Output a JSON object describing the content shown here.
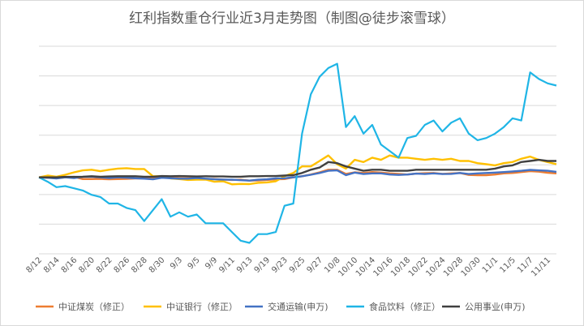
{
  "chart_data": {
    "type": "line",
    "title": "红利指数重仓行业近3月走势图（制图@徒步滚雪球）",
    "x": [
      "8/12",
      "8/13",
      "8/14",
      "8/15",
      "8/16",
      "8/19",
      "8/20",
      "8/21",
      "8/22",
      "8/23",
      "8/26",
      "8/27",
      "8/28",
      "8/29",
      "8/30",
      "9/2",
      "9/3",
      "9/4",
      "9/5",
      "9/6",
      "9/9",
      "9/10",
      "9/11",
      "9/12",
      "9/13",
      "9/18",
      "9/19",
      "9/20",
      "9/23",
      "9/24",
      "9/25",
      "9/26",
      "9/27",
      "9/30",
      "10/8",
      "10/9",
      "10/10",
      "10/11",
      "10/14",
      "10/15",
      "10/16",
      "10/17",
      "10/18",
      "10/21",
      "10/22",
      "10/23",
      "10/24",
      "10/25",
      "10/28",
      "10/29",
      "10/30",
      "10/31",
      "11/1",
      "11/4",
      "11/5",
      "11/6",
      "11/7",
      "11/8",
      "11/11",
      "11/12"
    ],
    "x_tick_labels": [
      "8/12",
      "8/14",
      "8/16",
      "8/20",
      "8/22",
      "8/26",
      "8/28",
      "8/30",
      "9/3",
      "9/5",
      "9/9",
      "9/11",
      "9/13",
      "9/19",
      "9/23",
      "9/25",
      "9/27",
      "10/8",
      "10/10",
      "10/14",
      "10/16",
      "10/18",
      "10/22",
      "10/24",
      "10/28",
      "10/30",
      "11/1",
      "11/5",
      "11/7",
      "11/11"
    ],
    "grid": true,
    "legend_position": "bottom",
    "series": [
      {
        "name": "中证煤炭（修正）",
        "color": "#ed7d31",
        "values": [
          0,
          -0.2,
          -0.3,
          0,
          0.2,
          -0.8,
          -0.8,
          -0.7,
          -0.9,
          -0.8,
          -0.7,
          -0.5,
          -0.5,
          -0.6,
          0.3,
          -0.2,
          -0.4,
          -0.4,
          -0.3,
          -0.7,
          -0.8,
          -1.0,
          -1.2,
          -1.1,
          -1.5,
          -1.4,
          -1.2,
          -0.9,
          -0.8,
          0,
          0.5,
          1.3,
          2.3,
          3.5,
          3.5,
          1.6,
          2.3,
          2.0,
          2.4,
          2.2,
          1.8,
          1.6,
          1.3,
          1.7,
          1.9,
          2.0,
          1.6,
          1.8,
          2.0,
          1.1,
          1.0,
          1.0,
          1.3,
          1.8,
          2.0,
          2.4,
          2.8,
          2.6,
          2.1,
          1.8
        ]
      },
      {
        "name": "中证银行（修正）",
        "color": "#ffc000",
        "values": [
          0,
          0.8,
          0.3,
          1.2,
          2.3,
          3.2,
          3.5,
          2.8,
          3.5,
          4.0,
          4.2,
          3.8,
          3.8,
          0.5,
          0.5,
          -0.5,
          -0.8,
          -1.2,
          -1.1,
          -1.0,
          -2.0,
          -1.8,
          -3.2,
          -3.0,
          -3.1,
          -2.5,
          -2.3,
          -1.8,
          0.5,
          2.0,
          5.0,
          5.0,
          7.5,
          10.0,
          6.0,
          4.0,
          8.0,
          7.0,
          9.0,
          8.0,
          10.0,
          9.0,
          9.0,
          8.5,
          8.0,
          8.5,
          8.0,
          8.5,
          7.5,
          7.5,
          6.5,
          6.0,
          5.5,
          6.5,
          7.0,
          8.5,
          9.5,
          8.0,
          7.0,
          6.0
        ]
      },
      {
        "name": "交通运输(申万)",
        "color": "#4472c4",
        "values": [
          0,
          -0.2,
          -0.5,
          0,
          -0.3,
          0.2,
          0.3,
          0,
          -0.3,
          0,
          -0.2,
          -0.4,
          -0.6,
          -0.9,
          -0.2,
          -0.4,
          -0.6,
          -0.6,
          -0.3,
          -0.6,
          -0.9,
          -1.0,
          -1.1,
          -1.3,
          -1.5,
          -1.1,
          -0.9,
          -0.5,
          -0.4,
          0,
          0.5,
          1.2,
          2.0,
          3.0,
          3.2,
          1.0,
          2.2,
          1.5,
          1.8,
          1.8,
          1.3,
          1.1,
          1.3,
          1.7,
          1.5,
          1.8,
          1.5,
          1.6,
          2.0,
          1.5,
          1.8,
          2.0,
          2.2,
          2.4,
          2.7,
          3.0,
          3.4,
          3.2,
          3.0,
          2.5
        ]
      },
      {
        "name": "食品饮料（修正）",
        "color": "#1fb5e6",
        "values": [
          0,
          -2.0,
          -4.5,
          -4.0,
          -5.0,
          -6.0,
          -8.0,
          -9.0,
          -12.0,
          -12.0,
          -14.0,
          -15.0,
          -20.0,
          -15.0,
          -10.0,
          -18.0,
          -16.0,
          -18.0,
          -17.0,
          -21.0,
          -21.0,
          -21.0,
          -25.0,
          -29.0,
          -30.0,
          -26.0,
          -26.0,
          -25.0,
          -13.0,
          -12.0,
          20.0,
          38.0,
          46.0,
          50.0,
          52.0,
          23.0,
          28.0,
          20.0,
          24.0,
          15.0,
          12.0,
          9.0,
          18.0,
          19.0,
          24.0,
          26.0,
          21.0,
          25.0,
          27.0,
          20.0,
          17.0,
          18.0,
          20.0,
          23.0,
          27.0,
          26.0,
          48.0,
          45.0,
          43.0,
          42.0
        ]
      },
      {
        "name": "公用事业(申万)",
        "color": "#404040",
        "values": [
          0,
          0,
          0,
          0.2,
          0.2,
          0.3,
          0.5,
          0.3,
          0.4,
          0.5,
          0.5,
          0.5,
          0.3,
          0.3,
          0.6,
          0.5,
          0.6,
          0.5,
          0.4,
          0.5,
          0.4,
          0.4,
          0.3,
          0.3,
          0.5,
          0.5,
          0.6,
          0.6,
          0.8,
          1.0,
          2.0,
          3.5,
          4.5,
          7.0,
          6.5,
          5.0,
          4.0,
          3.0,
          3.5,
          3.5,
          3.0,
          3.0,
          3.0,
          3.5,
          3.5,
          3.5,
          3.5,
          3.5,
          3.5,
          3.5,
          3.5,
          3.5,
          4.0,
          5.0,
          5.5,
          7.0,
          7.5,
          8.0,
          7.5,
          7.5
        ]
      }
    ]
  }
}
